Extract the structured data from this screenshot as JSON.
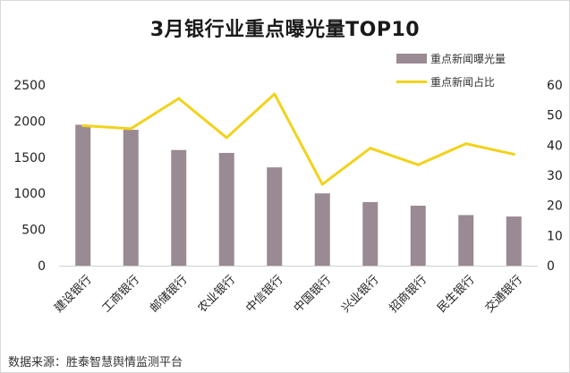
{
  "chart_data": {
    "type": "bar+line",
    "title": "3月银行业重点曝光量TOP10",
    "categories": [
      "建设银行",
      "工商银行",
      "邮储银行",
      "农业银行",
      "中信银行",
      "中国银行",
      "兴业银行",
      "招商银行",
      "民生银行",
      "交通银行"
    ],
    "series": [
      {
        "name": "重点新闻曝光量",
        "type": "bar",
        "axis": "left",
        "color": "#9a8a93",
        "values": [
          1950,
          1880,
          1600,
          1560,
          1360,
          1000,
          880,
          830,
          700,
          680
        ]
      },
      {
        "name": "重点新闻占比",
        "type": "line",
        "axis": "right",
        "color": "#f2d21b",
        "values": [
          46.5,
          45.5,
          55.5,
          42.5,
          57.0,
          27.0,
          39.0,
          33.5,
          40.5,
          37.0
        ]
      }
    ],
    "y_left": {
      "min": 0,
      "max": 2500,
      "ticks": [
        "0",
        "500",
        "1000",
        "1500",
        "2000",
        "2500"
      ]
    },
    "y_right": {
      "min": 0,
      "max": 60,
      "ticks": [
        "0",
        "10",
        "20",
        "30",
        "40",
        "50",
        "60"
      ]
    },
    "grid": false,
    "legend_position": "top-right"
  },
  "source": "数据来源：胜泰智慧舆情监测平台"
}
